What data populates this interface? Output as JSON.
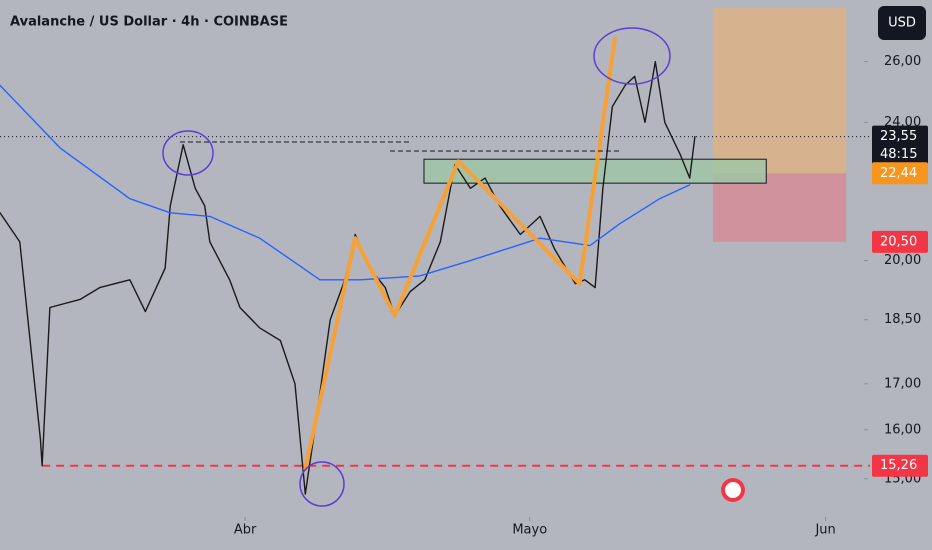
{
  "chart_data": {
    "type": "line",
    "title": "Avalanche / US Dollar · 4h · COINBASE",
    "currency": "USD",
    "log_scale": true,
    "grid": false,
    "xlim": [
      0,
      100
    ],
    "ylim": [
      14.3,
      28.2
    ],
    "xticks": [
      {
        "value": 28.5,
        "label": "Abr"
      },
      {
        "value": 61.6,
        "label": "Mayo"
      },
      {
        "value": 96.0,
        "label": "Jun"
      }
    ],
    "yticks": [
      {
        "value": 26,
        "label": "26,00"
      },
      {
        "value": 24,
        "label": "24,00"
      },
      {
        "value": 20,
        "label": "20,00"
      },
      {
        "value": 18.5,
        "label": "18,50"
      },
      {
        "value": 17,
        "label": "17,00"
      },
      {
        "value": 16,
        "label": "16,00"
      },
      {
        "value": 15,
        "label": "15,00"
      }
    ],
    "series": [
      {
        "color": "#1a1a1a",
        "width": 1.4,
        "x": [
          0,
          2.3,
          4.7,
          4.9,
          5.8,
          9.3,
          11.6,
          15.1,
          16.9,
          19.2,
          19.8,
          21.3,
          22.7,
          23.8,
          24.4,
          26.7,
          27.9,
          30.2,
          32.6,
          34.3,
          35.5,
          36.6,
          38.4,
          40.1,
          41.3,
          43.0,
          44.8,
          45.9,
          47.7,
          49.4,
          51.2,
          52.9,
          54.7,
          56.4,
          58.1,
          60.5,
          62.8,
          64.5,
          66.9,
          68.0,
          69.2,
          70.1,
          71.2,
          72.7,
          73.8,
          75.0,
          76.2,
          77.3,
          79.1,
          80.2,
          80.8
        ],
        "values": [
          21.3,
          20.5,
          15.8,
          15.26,
          18.8,
          19.0,
          19.3,
          19.5,
          18.7,
          19.8,
          21.5,
          23.3,
          22.0,
          21.5,
          20.5,
          19.5,
          18.8,
          18.3,
          18.0,
          17.0,
          14.7,
          16.0,
          18.5,
          19.5,
          20.7,
          19.8,
          19.3,
          18.6,
          19.2,
          19.5,
          20.5,
          22.7,
          22.0,
          22.3,
          21.5,
          20.7,
          21.2,
          20.3,
          19.4,
          19.5,
          19.3,
          22.0,
          24.5,
          25.2,
          25.5,
          24.0,
          26.0,
          24.0,
          23.0,
          22.3,
          23.55
        ]
      },
      {
        "color": "#2962ff",
        "width": 1.4,
        "x": [
          0,
          7.0,
          15.1,
          19.8,
          24.4,
          30.2,
          37.2,
          41.9,
          48.8,
          54.7,
          62.8,
          68.6,
          72.1,
          76.7,
          80.2
        ],
        "values": [
          25.2,
          23.2,
          21.7,
          21.3,
          21.2,
          20.6,
          19.5,
          19.5,
          19.6,
          20.0,
          20.6,
          20.4,
          21.0,
          21.7,
          22.1
        ]
      },
      {
        "color": "#f7a033",
        "width": 4,
        "x": [
          35.5,
          41.3,
          45.9,
          53.3,
          67.4,
          71.5
        ],
        "values": [
          15.2,
          20.6,
          18.6,
          22.8,
          19.4,
          26.8
        ]
      }
    ],
    "zones": [
      {
        "x": [
          82.9,
          98.4
        ],
        "y": [
          22.44,
          27.9
        ],
        "color": "#dcb385"
      },
      {
        "x": [
          82.9,
          98.4
        ],
        "y": [
          20.5,
          22.44
        ],
        "color": "#d58d97"
      },
      {
        "x": [
          49.3,
          89.1
        ],
        "y": [
          22.15,
          22.86
        ],
        "color": "#9fc6a4"
      }
    ],
    "levels": [
      {
        "value": 23.55,
        "label": "23,55",
        "countdown": "48:15",
        "color": "#131722",
        "line": "dotted",
        "from": 0
      },
      {
        "value": 22.44,
        "label": "22,44",
        "color": "#f7951d",
        "line": "none",
        "from": 0
      },
      {
        "value": 20.5,
        "label": "20,50",
        "color": "#f23645",
        "line": "none",
        "from": 0
      },
      {
        "value": 15.26,
        "label": "15,26",
        "color": "#f23645",
        "line": "dashed",
        "from": 4.9
      }
    ]
  }
}
